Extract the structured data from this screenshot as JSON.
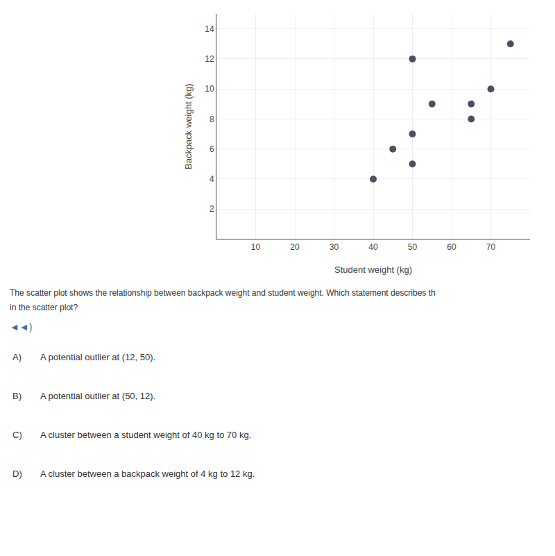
{
  "chart_data": {
    "type": "scatter",
    "x": [
      40,
      45,
      50,
      50,
      50,
      55,
      65,
      65,
      70,
      75
    ],
    "values": [
      4,
      6,
      12,
      7,
      5,
      9,
      9,
      8,
      10,
      13
    ],
    "xlabel": "Student weight (kg)",
    "ylabel": "Backpack weight (kg)",
    "xlim": [
      0,
      80
    ],
    "ylim": [
      0,
      15
    ],
    "xticks": [
      10,
      20,
      30,
      40,
      50,
      60,
      70
    ],
    "yticks": [
      2,
      4,
      6,
      8,
      10,
      12,
      14
    ],
    "grid": true,
    "color": "#4a5060",
    "annotations": [
      "The scatter plot shows the relationship between backpack weight and student weight. Which statement describes th",
      "in the scatter plot?",
      "◄◄)",
      "A)",
      "A potential outlier at (12, 50).",
      "B)",
      "A potential outlier at (50, 12).",
      "C)",
      "A cluster between a student weight of 40 kg to 70 kg.",
      "D)",
      "A cluster between a backpack weight of 4 kg to 12 kg."
    ]
  }
}
